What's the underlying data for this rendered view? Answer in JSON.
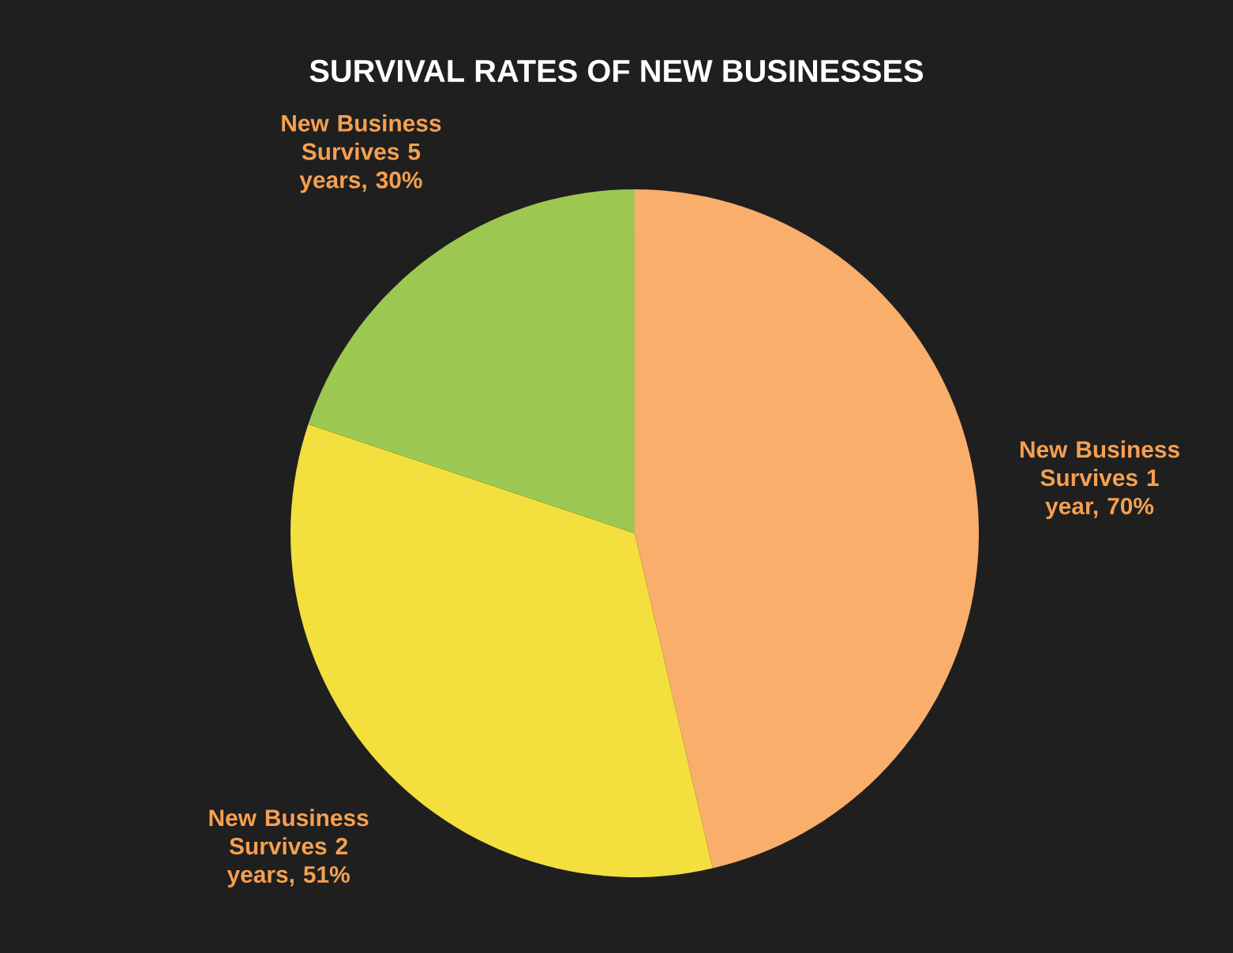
{
  "chart_data": {
    "type": "pie",
    "title": "SURVIVAL RATES OF NEW BUSINESSES",
    "categories": [
      "New Business Survives 1 year, 70%",
      "New Business Survives 2 years, 51%",
      "New Business Survives 5 years, 30%"
    ],
    "values": [
      70,
      51,
      30
    ],
    "colors": [
      "#f9ae6b",
      "#f3df3e",
      "#9cc852"
    ]
  }
}
